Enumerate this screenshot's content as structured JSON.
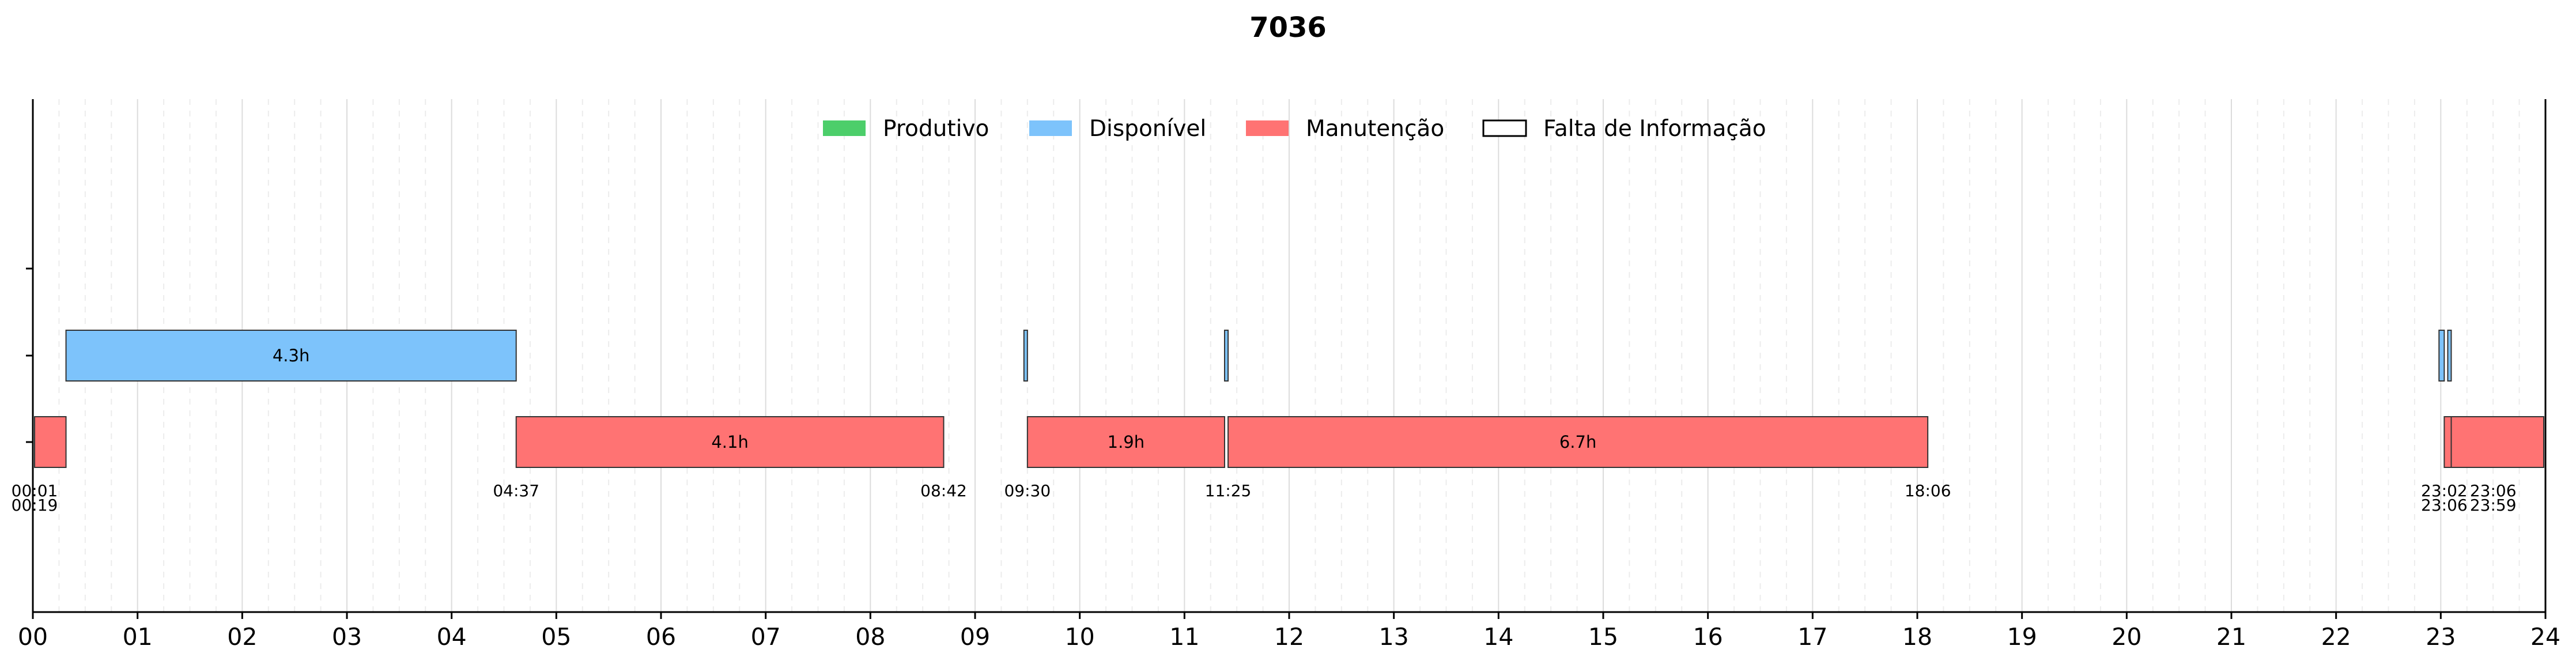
{
  "chart_data": {
    "type": "gantt",
    "title": "7036",
    "x_ticks": [
      "00",
      "01",
      "02",
      "03",
      "04",
      "05",
      "06",
      "07",
      "08",
      "09",
      "10",
      "11",
      "12",
      "13",
      "14",
      "15",
      "16",
      "17",
      "18",
      "19",
      "20",
      "21",
      "22",
      "23",
      "24"
    ],
    "xlim": [
      0,
      24
    ],
    "rows": [
      "Produtivo",
      "Disponível",
      "Manutenção"
    ],
    "legend": [
      {
        "label": "Produtivo",
        "color": "#4cce6a",
        "outline": false
      },
      {
        "label": "Disponível",
        "color": "#7dc3fb",
        "outline": false
      },
      {
        "label": "Manutenção",
        "color": "#ff7373",
        "outline": false
      },
      {
        "label": "Falta de Informação",
        "color": "#ffffff",
        "outline": true
      }
    ],
    "legend_position": "top-center",
    "colors": {
      "Produtivo": "#4cce6a",
      "Disponível": "#7dc3fb",
      "Manutenção": "#ff7373"
    },
    "segments": [
      {
        "category": "Disponível",
        "start": 0.3167,
        "end": 4.6167,
        "label": "4.3h"
      },
      {
        "category": "Disponível",
        "start": 9.4667,
        "end": 9.5,
        "label": ""
      },
      {
        "category": "Disponível",
        "start": 11.3833,
        "end": 11.4167,
        "label": ""
      },
      {
        "category": "Disponível",
        "start": 22.9833,
        "end": 23.0333,
        "label": ""
      },
      {
        "category": "Disponível",
        "start": 23.0667,
        "end": 23.1,
        "label": ""
      },
      {
        "category": "Manutenção",
        "start": 0.0167,
        "end": 0.3167,
        "label": ""
      },
      {
        "category": "Manutenção",
        "start": 4.6167,
        "end": 8.7,
        "label": "4.1h"
      },
      {
        "category": "Manutenção",
        "start": 9.5,
        "end": 11.3833,
        "label": "1.9h"
      },
      {
        "category": "Manutenção",
        "start": 11.4167,
        "end": 18.1,
        "label": "6.7h"
      },
      {
        "category": "Manutenção",
        "start": 23.0333,
        "end": 23.1,
        "label": ""
      },
      {
        "category": "Manutenção",
        "start": 23.1,
        "end": 23.9833,
        "label": ""
      }
    ],
    "time_labels": [
      {
        "pos": 0.0167,
        "top": "00:01",
        "bottom": "00:19"
      },
      {
        "pos": 4.6167,
        "top": "04:37",
        "bottom": ""
      },
      {
        "pos": 8.7,
        "top": "08:42",
        "bottom": ""
      },
      {
        "pos": 9.5,
        "top": "09:30",
        "bottom": ""
      },
      {
        "pos": 11.4167,
        "top": "11:25",
        "bottom": ""
      },
      {
        "pos": 18.1,
        "top": "18:06",
        "bottom": ""
      },
      {
        "pos": 23.0333,
        "top": "23:02",
        "bottom": "23:06"
      },
      {
        "pos": 23.5,
        "top": "23:06",
        "bottom": "23:59"
      }
    ],
    "grid": true
  }
}
